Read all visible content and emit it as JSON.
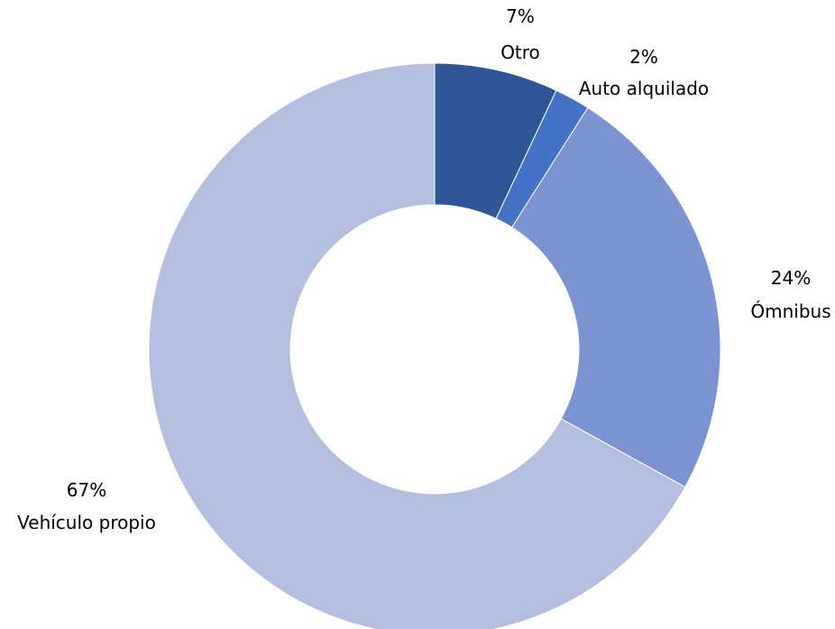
{
  "chart_data": {
    "type": "pie",
    "donut": true,
    "title": "",
    "legend": "none",
    "start_angle_deg": 0,
    "direction": "clockwise",
    "slices": [
      {
        "label": "Otro",
        "value": 7,
        "value_label": "7%",
        "color": "#2F5597"
      },
      {
        "label": "Auto alquilado",
        "value": 2,
        "value_label": "2%",
        "color": "#4472C4"
      },
      {
        "label": "Ómnibus",
        "value": 24,
        "value_label": "24%",
        "color": "#7B93D0"
      },
      {
        "label": "Vehículo propio",
        "value": 67,
        "value_label": "67%",
        "color": "#B4BFDF"
      }
    ]
  }
}
